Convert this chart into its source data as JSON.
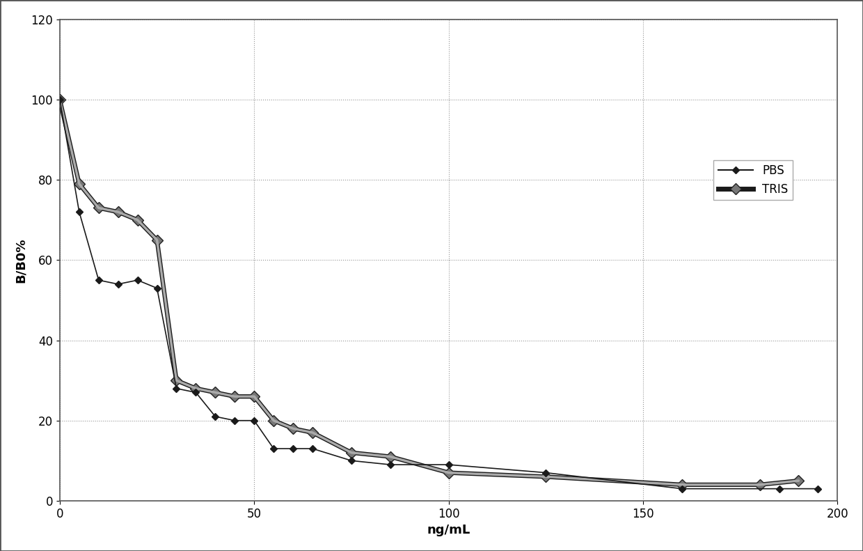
{
  "PBS_x": [
    0,
    5,
    10,
    15,
    20,
    25,
    30,
    35,
    40,
    45,
    50,
    55,
    60,
    65,
    75,
    85,
    100,
    125,
    160,
    185,
    195
  ],
  "PBS_y": [
    100,
    72,
    55,
    54,
    55,
    53,
    28,
    27,
    21,
    20,
    20,
    13,
    13,
    13,
    10,
    9,
    9,
    7,
    3,
    3,
    3
  ],
  "TRIS_x": [
    0,
    5,
    10,
    15,
    20,
    25,
    30,
    35,
    40,
    45,
    50,
    55,
    60,
    65,
    75,
    85,
    100,
    125,
    160,
    180,
    190
  ],
  "TRIS_y": [
    100,
    79,
    73,
    72,
    70,
    65,
    30,
    28,
    27,
    26,
    26,
    20,
    18,
    17,
    12,
    11,
    7,
    6,
    4,
    4,
    5
  ],
  "xlabel": "ng/mL",
  "ylabel": "B/B0%",
  "xlim": [
    0,
    200
  ],
  "ylim": [
    0,
    120
  ],
  "xticks": [
    0,
    50,
    100,
    150,
    200
  ],
  "yticks": [
    0,
    20,
    40,
    60,
    80,
    100,
    120
  ],
  "PBS_color": "#1a1a1a",
  "TRIS_color": "#1a1a1a",
  "PBS_label": "PBS",
  "TRIS_label": "TRIS",
  "grid_color": "#888888",
  "background_color": "#ffffff",
  "border_color": "#555555",
  "label_fontsize": 13,
  "tick_fontsize": 12,
  "legend_fontsize": 12
}
